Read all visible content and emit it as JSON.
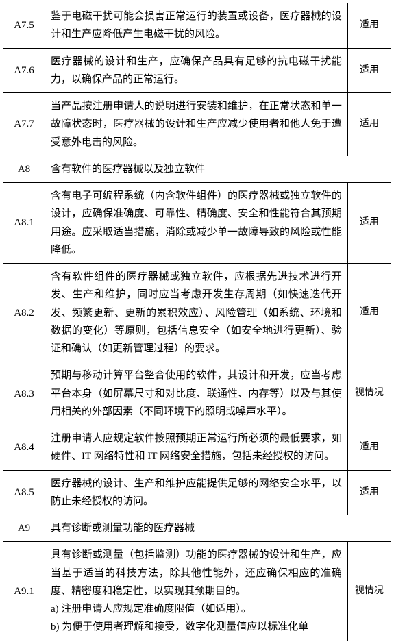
{
  "rows": [
    {
      "id": "A7.5",
      "content": "鉴于电磁干扰可能会损害正常运行的装置或设备，医疗器械的设计和生产应降低产生电磁干扰的风险。",
      "status": "适用",
      "section": false
    },
    {
      "id": "A7.6",
      "content": "医疗器械的设计和生产，应确保产品具有足够的抗电磁干扰能力，以确保产品的正常运行。",
      "status": "适用",
      "section": false
    },
    {
      "id": "A7.7",
      "content": "当产品按注册申请人的说明进行安装和维护，在正常状态和单一故障状态时，医疗器械的设计和生产应减少使用者和他人免于遭受意外电击的风险。",
      "status": "适用",
      "section": false
    },
    {
      "id": "A8",
      "content": "含有软件的医疗器械以及独立软件",
      "status": "",
      "section": true
    },
    {
      "id": "A8.1",
      "content": "含有电子可编程系统（内含软件组件）的医疗器械或独立软件的设计，应确保准确度、可靠性、精确度、安全和性能符合其预期用途。应采取适当措施，消除或减少单一故障导致的风险或性能降低。",
      "status": "适用",
      "section": false
    },
    {
      "id": "A8.2",
      "content": "含有软件组件的医疗器械或独立软件，应根据先进技术进行开发、生产和维护，同时应当考虑开发生存周期（如快速迭代开发、频繁更新、更新的累积效应）、风险管理（如系统、环境和数据的变化）等原则，包括信息安全（如安全地进行更新）、验证和确认（如更新管理过程）的要求。",
      "status": "适用",
      "section": false
    },
    {
      "id": "A8.3",
      "content": "预期与移动计算平台整合使用的软件，其设计和开发，应当考虑平台本身（如屏幕尺寸和对比度、联通性、内存等）以及与其使用相关的外部因素（不同环境下的照明或噪声水平）。",
      "status": "视情况",
      "section": false
    },
    {
      "id": "A8.4",
      "content": "注册申请人应规定软件按照预期正常运行所必须的最低要求，如硬件、IT 网络特性和 IT 网络安全措施，包括未经授权的访问。",
      "status": "适用",
      "section": false
    },
    {
      "id": "A8.5",
      "content": "医疗器械的设计、生产和维护应能提供足够的网络安全水平，以防止未经授权的访问。",
      "status": "适用",
      "section": false
    },
    {
      "id": "A9",
      "content": "具有诊断或测量功能的医疗器械",
      "status": "",
      "section": true
    },
    {
      "id": "A9.1",
      "content": "具有诊断或测量（包括监测）功能的医疗器械的设计和生产，应当基于适当的科技方法，除其他性能外，还应确保相应的准确度、精密度和稳定性，以实现其预期目的。",
      "status": "视情况",
      "section": false,
      "subitems": [
        "a)  注册申请人应规定准确度限值（如适用）。",
        "b)  为便于使用者理解和接受，数字化测量值应以标准化单"
      ]
    }
  ]
}
